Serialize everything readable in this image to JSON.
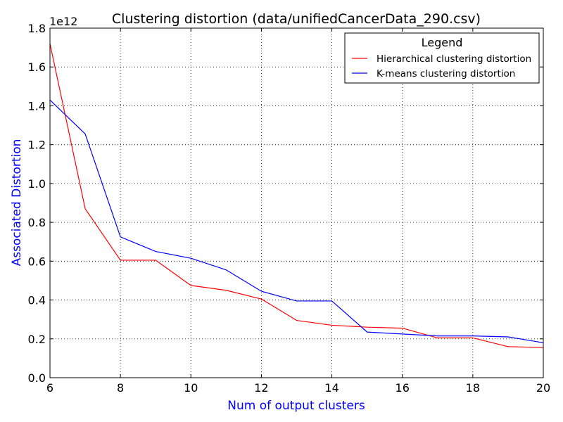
{
  "chart_data": {
    "type": "line",
    "title": "Clustering distortion (data/unifiedCancerData_290.csv)",
    "xlabel": "Num of output clusters",
    "ylabel": "Associated Distortion",
    "y_offset_label": "1e12",
    "xlim": [
      6,
      20
    ],
    "ylim": [
      0,
      1.8
    ],
    "x_ticks": [
      "6",
      "8",
      "10",
      "12",
      "14",
      "16",
      "18",
      "20"
    ],
    "y_ticks": [
      "0.0",
      "0.2",
      "0.4",
      "0.6",
      "0.8",
      "1.0",
      "1.2",
      "1.4",
      "1.6",
      "1.8"
    ],
    "grid": true,
    "legend": {
      "title": "Legend",
      "placement": "top-right"
    },
    "x": [
      6,
      7,
      8,
      9,
      10,
      11,
      12,
      13,
      14,
      15,
      16,
      17,
      18,
      19,
      20
    ],
    "series": [
      {
        "name": "Hierarchical clustering distortion",
        "color": "#ff0000",
        "values": [
          1.72,
          0.87,
          0.605,
          0.605,
          0.475,
          0.45,
          0.405,
          0.295,
          0.27,
          0.26,
          0.255,
          0.205,
          0.205,
          0.16,
          0.155
        ]
      },
      {
        "name": "K-means clustering distortion",
        "color": "#0000ff",
        "values": [
          1.43,
          1.255,
          0.725,
          0.65,
          0.615,
          0.555,
          0.445,
          0.395,
          0.395,
          0.235,
          0.225,
          0.215,
          0.215,
          0.21,
          0.18
        ]
      }
    ]
  }
}
